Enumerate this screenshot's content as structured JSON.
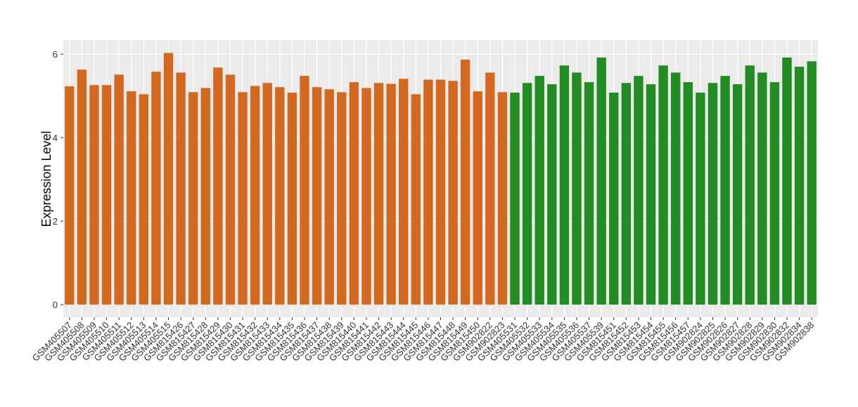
{
  "chart_data": {
    "type": "bar",
    "y_label": "Expression Level",
    "categories": [
      "GSM405507",
      "GSM405508",
      "GSM405509",
      "GSM405510",
      "GSM405511",
      "GSM405512",
      "GSM405513",
      "GSM405514",
      "GSM405515",
      "GSM815426",
      "GSM815427",
      "GSM815428",
      "GSM815429",
      "GSM815430",
      "GSM815431",
      "GSM815432",
      "GSM815433",
      "GSM815434",
      "GSM815435",
      "GSM815436",
      "GSM815437",
      "GSM815438",
      "GSM815439",
      "GSM815440",
      "GSM815441",
      "GSM815442",
      "GSM815443",
      "GSM815444",
      "GSM815445",
      "GSM815446",
      "GSM815447",
      "GSM815448",
      "GSM815449",
      "GSM815450",
      "GSM902822",
      "GSM902823",
      "GSM405531",
      "GSM405532",
      "GSM405533",
      "GSM405534",
      "GSM405535",
      "GSM405536",
      "GSM405537",
      "GSM405539",
      "GSM815451",
      "GSM815452",
      "GSM815453",
      "GSM815454",
      "GSM815455",
      "GSM815456",
      "GSM815457",
      "GSM902824",
      "GSM902825",
      "GSM902826",
      "GSM902827",
      "GSM902828",
      "GSM902829",
      "GSM902830",
      "GSM902832",
      "GSM902834",
      "GSM902838"
    ],
    "values": [
      5.23,
      5.63,
      5.26,
      5.26,
      5.51,
      5.11,
      5.04,
      5.58,
      6.03,
      5.56,
      5.09,
      5.19,
      5.68,
      5.51,
      5.09,
      5.24,
      5.31,
      5.21,
      5.08,
      5.48,
      5.21,
      5.16,
      5.09,
      5.33,
      5.19,
      5.31,
      5.29,
      5.41,
      5.04,
      5.39,
      5.39,
      5.36,
      5.87,
      5.11,
      5.56,
      5.09,
      5.08,
      5.31,
      5.48,
      5.28,
      5.73,
      5.56,
      5.33,
      5.92,
      5.08,
      5.31,
      5.48,
      5.28,
      5.73,
      5.56,
      5.33,
      5.08,
      5.31,
      5.48,
      5.28,
      5.73,
      5.56,
      5.33,
      5.92,
      5.7,
      5.83
    ],
    "colors": [
      "#d2691e",
      "#d2691e",
      "#d2691e",
      "#d2691e",
      "#d2691e",
      "#d2691e",
      "#d2691e",
      "#d2691e",
      "#d2691e",
      "#d2691e",
      "#d2691e",
      "#d2691e",
      "#d2691e",
      "#d2691e",
      "#d2691e",
      "#d2691e",
      "#d2691e",
      "#d2691e",
      "#d2691e",
      "#d2691e",
      "#d2691e",
      "#d2691e",
      "#d2691e",
      "#d2691e",
      "#d2691e",
      "#d2691e",
      "#d2691e",
      "#d2691e",
      "#d2691e",
      "#d2691e",
      "#d2691e",
      "#d2691e",
      "#d2691e",
      "#d2691e",
      "#d2691e",
      "#d2691e",
      "#228b22",
      "#228b22",
      "#228b22",
      "#228b22",
      "#228b22",
      "#228b22",
      "#228b22",
      "#228b22",
      "#228b22",
      "#228b22",
      "#228b22",
      "#228b22",
      "#228b22",
      "#228b22",
      "#228b22",
      "#228b22",
      "#228b22",
      "#228b22",
      "#228b22",
      "#228b22",
      "#228b22",
      "#228b22",
      "#228b22",
      "#228b22",
      "#228b22"
    ],
    "ylim": [
      -0.3,
      6.34
    ],
    "yticks": [
      0,
      2,
      4,
      6
    ],
    "grid": true
  }
}
